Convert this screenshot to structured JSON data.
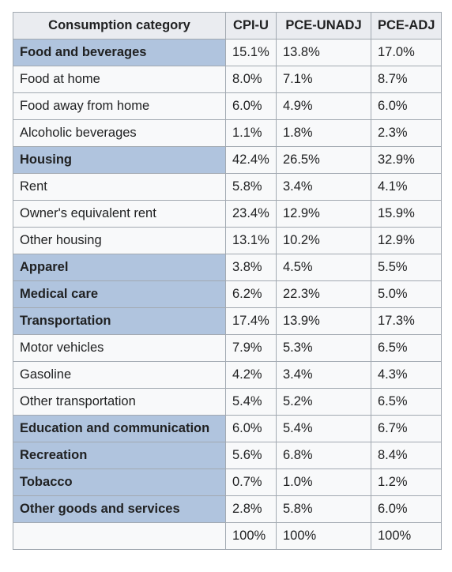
{
  "table": {
    "headers": [
      "Consumption category",
      "CPI-U",
      "PCE-UNADJ",
      "PCE-ADJ"
    ],
    "rows": [
      {
        "category": "Food and beverages",
        "major": true,
        "cpiu": "15.1%",
        "pce_unadj": "13.8%",
        "pce_adj": "17.0%"
      },
      {
        "category": "Food at home",
        "major": false,
        "cpiu": "8.0%",
        "pce_unadj": "7.1%",
        "pce_adj": "8.7%"
      },
      {
        "category": "Food away from home",
        "major": false,
        "cpiu": "6.0%",
        "pce_unadj": "4.9%",
        "pce_adj": "6.0%"
      },
      {
        "category": "Alcoholic beverages",
        "major": false,
        "cpiu": "1.1%",
        "pce_unadj": "1.8%",
        "pce_adj": "2.3%"
      },
      {
        "category": "Housing",
        "major": true,
        "cpiu": "42.4%",
        "pce_unadj": "26.5%",
        "pce_adj": "32.9%"
      },
      {
        "category": "Rent",
        "major": false,
        "cpiu": "5.8%",
        "pce_unadj": "3.4%",
        "pce_adj": "4.1%"
      },
      {
        "category": "Owner's equivalent rent",
        "major": false,
        "cpiu": "23.4%",
        "pce_unadj": "12.9%",
        "pce_adj": "15.9%"
      },
      {
        "category": "Other housing",
        "major": false,
        "cpiu": "13.1%",
        "pce_unadj": "10.2%",
        "pce_adj": "12.9%"
      },
      {
        "category": "Apparel",
        "major": true,
        "cpiu": "3.8%",
        "pce_unadj": "4.5%",
        "pce_adj": "5.5%"
      },
      {
        "category": "Medical care",
        "major": true,
        "cpiu": "6.2%",
        "pce_unadj": "22.3%",
        "pce_adj": "5.0%"
      },
      {
        "category": "Transportation",
        "major": true,
        "cpiu": "17.4%",
        "pce_unadj": "13.9%",
        "pce_adj": "17.3%"
      },
      {
        "category": "Motor vehicles",
        "major": false,
        "cpiu": "7.9%",
        "pce_unadj": "5.3%",
        "pce_adj": "6.5%"
      },
      {
        "category": "Gasoline",
        "major": false,
        "cpiu": "4.2%",
        "pce_unadj": "3.4%",
        "pce_adj": "4.3%"
      },
      {
        "category": "Other transportation",
        "major": false,
        "cpiu": "5.4%",
        "pce_unadj": "5.2%",
        "pce_adj": "6.5%"
      },
      {
        "category": "Education and communication",
        "major": true,
        "cpiu": "6.0%",
        "pce_unadj": "5.4%",
        "pce_adj": "6.7%"
      },
      {
        "category": "Recreation",
        "major": true,
        "cpiu": "5.6%",
        "pce_unadj": "6.8%",
        "pce_adj": "8.4%"
      },
      {
        "category": "Tobacco",
        "major": true,
        "cpiu": "0.7%",
        "pce_unadj": "1.0%",
        "pce_adj": "1.2%"
      },
      {
        "category": "Other goods and services",
        "major": true,
        "cpiu": "2.8%",
        "pce_unadj": "5.8%",
        "pce_adj": "6.0%"
      }
    ],
    "total": {
      "category": "",
      "cpiu": "100%",
      "pce_unadj": "100%",
      "pce_adj": "100%"
    }
  },
  "colors": {
    "major_row_bg": "#b0c4de",
    "header_bg": "#eaecf0",
    "cell_bg": "#f8f9fa",
    "border": "#a2a9b1"
  }
}
